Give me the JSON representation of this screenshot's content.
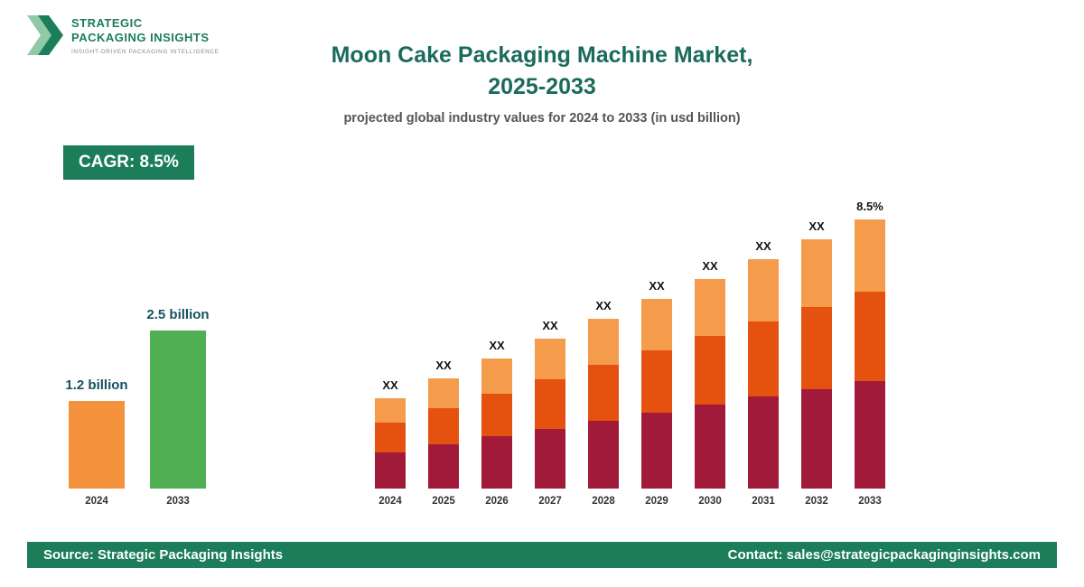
{
  "logo": {
    "line1": "STRATEGIC",
    "line2": "PACKAGING INSIGHTS",
    "tagline": "INSIGHT-DRIVEN PACKAGING INTELLIGENCE"
  },
  "header": {
    "title_line1": "Moon Cake Packaging Machine Market,",
    "title_line2": "2025-2033",
    "subtitle": "projected global industry values for 2024 to 2033 (in usd billion)"
  },
  "badge": {
    "label": "CAGR: 8.5%"
  },
  "mini_chart": {
    "type": "bar",
    "bars": [
      {
        "year": "2024",
        "label": "1.2 billion",
        "value": 1.2,
        "color": "#f5923e"
      },
      {
        "year": "2033",
        "label": "2.5 billion",
        "value": 2.5,
        "color": "#4faf52"
      }
    ]
  },
  "chart_data": {
    "type": "bar",
    "stacked": true,
    "title": "Moon Cake Packaging Machine Market, 2025-2033",
    "subtitle": "projected global industry values for 2024 to 2033 (in usd billion)",
    "categories": [
      "2024",
      "2025",
      "2026",
      "2027",
      "2028",
      "2029",
      "2030",
      "2031",
      "2032",
      "2033"
    ],
    "totals_usd_billion": [
      1.2,
      1.3,
      1.41,
      1.53,
      1.66,
      1.8,
      1.96,
      2.13,
      2.31,
      2.5
    ],
    "cagr_percent": 8.5,
    "bar_labels": [
      "XX",
      "XX",
      "XX",
      "XX",
      "XX",
      "XX",
      "XX",
      "XX",
      "XX",
      "8.5%"
    ],
    "segments": [
      {
        "name": "top",
        "color": "#f59b4c",
        "fraction": 0.27
      },
      {
        "name": "middle",
        "color": "#e5510e",
        "fraction": 0.33
      },
      {
        "name": "bottom",
        "color": "#a11a3a",
        "fraction": 0.4
      }
    ],
    "legend": "none",
    "grid": false,
    "ylim": [
      0,
      2.8
    ]
  },
  "footer": {
    "source": "Source: Strategic Packaging Insights",
    "contact": "Contact: sales@strategicpackaginginsights.com"
  },
  "colors": {
    "accent_green": "#1b7d5a",
    "title_teal": "#1a6b5c",
    "maroon": "#a11a3a",
    "orange_red": "#e5510e",
    "light_orange": "#f59b4c"
  }
}
